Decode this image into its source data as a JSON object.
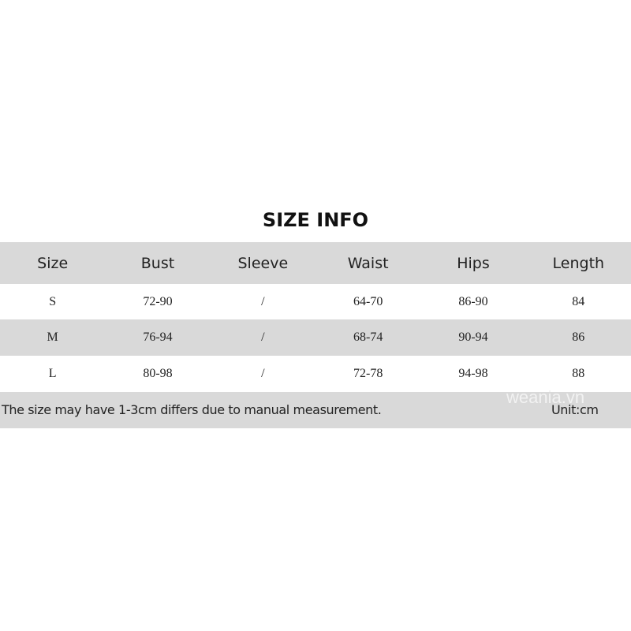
{
  "title": "SIZE INFO",
  "headers": [
    "Size",
    "Bust",
    "Sleeve",
    "Waist",
    "Hips",
    "Length"
  ],
  "rows": [
    [
      "S",
      "72-90",
      "/",
      "64-70",
      "86-90",
      "84"
    ],
    [
      "M",
      "76-94",
      "/",
      "68-74",
      "90-94",
      "86"
    ],
    [
      "L",
      "80-98",
      "/",
      "72-78",
      "94-98",
      "88"
    ]
  ],
  "note": "The size may have 1-3cm differs due to manual measurement.",
  "unit": "Unit:cm",
  "watermark": "weania.vn",
  "colors": {
    "band": "#d9d9d9",
    "text": "#222222"
  }
}
